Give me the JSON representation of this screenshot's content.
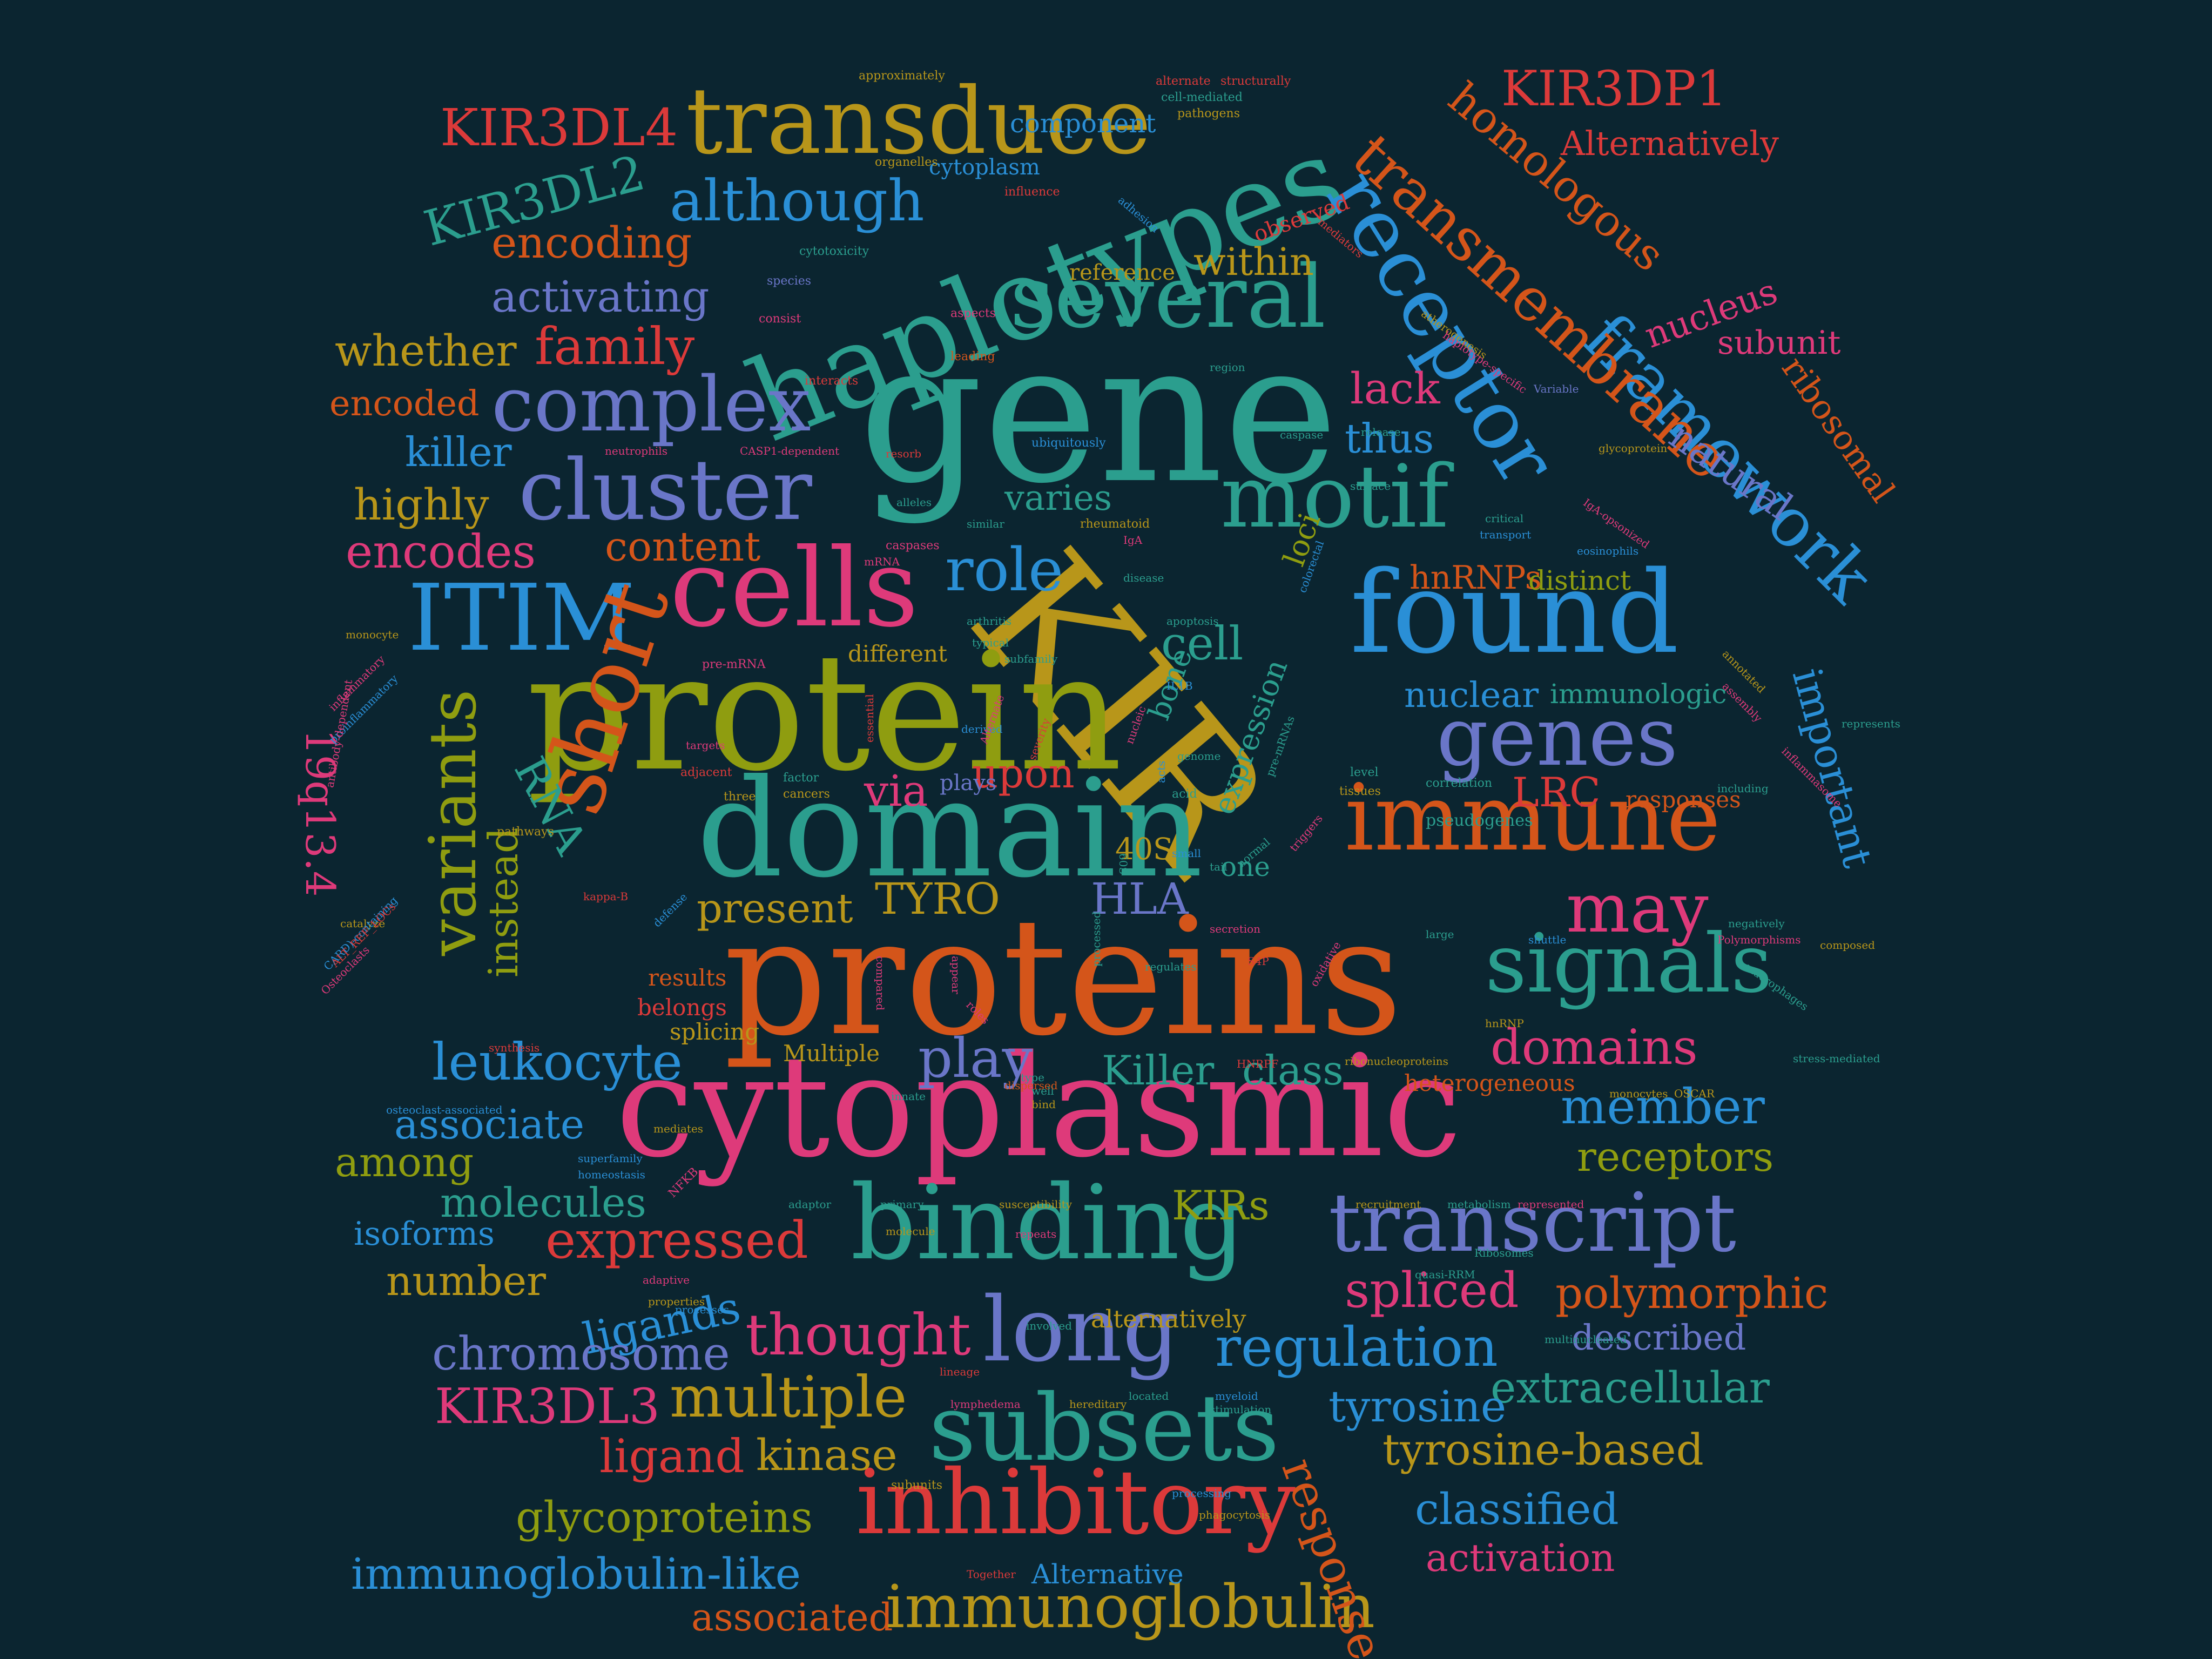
{
  "background": "#0b2530",
  "palette": {
    "teal": "#2b9e8e",
    "olive": "#8f9d10",
    "orange": "#d4551a",
    "pink": "#de3a7a",
    "blue": "#2a8fd6",
    "slate": "#6a76c8",
    "gold": "#b8961a",
    "red": "#dc3a3a"
  },
  "words": [
    {
      "text": "gene",
      "color": "#2b9e8e"
    },
    {
      "text": "KIR",
      "color": "#b8961a"
    },
    {
      "text": "proteins",
      "color": "#d4551a"
    },
    {
      "text": "cytoplasmic",
      "color": "#de3a7a"
    },
    {
      "text": "protein",
      "color": "#8f9d10"
    },
    {
      "text": "domain",
      "color": "#2b9e8e"
    },
    {
      "text": "haplotypes",
      "color": "#2b9e8e"
    },
    {
      "text": "binding",
      "color": "#2b9e8e"
    },
    {
      "text": "found",
      "color": "#2a8fd6"
    },
    {
      "text": "immune",
      "color": "#d4551a"
    },
    {
      "text": "cells",
      "color": "#de3a7a"
    },
    {
      "text": "receptor",
      "color": "#2a8fd6"
    },
    {
      "text": "transduce",
      "color": "#b8961a"
    },
    {
      "text": "several",
      "color": "#2b9e8e"
    },
    {
      "text": "motif",
      "color": "#2b9e8e"
    },
    {
      "text": "transcript",
      "color": "#6a76c8"
    },
    {
      "text": "inhibitory",
      "color": "#dc3a3a"
    },
    {
      "text": "subsets",
      "color": "#2b9e8e"
    },
    {
      "text": "long",
      "color": "#6a76c8"
    },
    {
      "text": "ITIM",
      "color": "#2a8fd6"
    },
    {
      "text": "cluster",
      "color": "#6a76c8"
    },
    {
      "text": "complex",
      "color": "#6a76c8"
    },
    {
      "text": "short",
      "color": "#d4551a"
    },
    {
      "text": "variants",
      "color": "#8f9d10"
    },
    {
      "text": "genes",
      "color": "#6a76c8"
    },
    {
      "text": "signals",
      "color": "#2b9e8e"
    },
    {
      "text": "framework",
      "color": "#2a8fd6"
    },
    {
      "text": "transmembrane",
      "color": "#d4551a"
    },
    {
      "text": "homologous",
      "color": "#d4551a"
    },
    {
      "text": "KIR3DP1",
      "color": "#dc3a3a"
    },
    {
      "text": "KIR3DL4",
      "color": "#dc3a3a"
    },
    {
      "text": "KIR3DL2",
      "color": "#2b9e8e"
    },
    {
      "text": "KIR3DL3",
      "color": "#de3a7a"
    },
    {
      "text": "although",
      "color": "#2a8fd6"
    },
    {
      "text": "encoding",
      "color": "#d4551a"
    },
    {
      "text": "activating",
      "color": "#6a76c8"
    },
    {
      "text": "whether",
      "color": "#b8961a"
    },
    {
      "text": "family",
      "color": "#dc3a3a"
    },
    {
      "text": "encoded",
      "color": "#d4551a"
    },
    {
      "text": "killer",
      "color": "#2a8fd6"
    },
    {
      "text": "highly",
      "color": "#b8961a"
    },
    {
      "text": "encodes",
      "color": "#de3a7a"
    },
    {
      "text": "content",
      "color": "#d4551a"
    },
    {
      "text": "role",
      "color": "#2a8fd6"
    },
    {
      "text": "within",
      "color": "#b8961a"
    },
    {
      "text": "lack",
      "color": "#de3a7a"
    },
    {
      "text": "thus",
      "color": "#2a8fd6"
    },
    {
      "text": "varies",
      "color": "#2b9e8e"
    },
    {
      "text": "natural",
      "color": "#6a76c8"
    },
    {
      "text": "nucleus",
      "color": "#de3a7a"
    },
    {
      "text": "subunit",
      "color": "#de3a7a"
    },
    {
      "text": "ribosomal",
      "color": "#d4551a"
    },
    {
      "text": "important",
      "color": "#2a8fd6"
    },
    {
      "text": "Alternatively",
      "color": "#dc3a3a"
    },
    {
      "text": "hnRNPs",
      "color": "#d4551a"
    },
    {
      "text": "distinct",
      "color": "#8f9d10"
    },
    {
      "text": "loci",
      "color": "#8f9d10"
    },
    {
      "text": "cell",
      "color": "#2b9e8e"
    },
    {
      "text": "nuclear",
      "color": "#2a8fd6"
    },
    {
      "text": "immunologic",
      "color": "#2b9e8e"
    },
    {
      "text": "LRC",
      "color": "#dc3a3a"
    },
    {
      "text": "may",
      "color": "#de3a7a"
    },
    {
      "text": "upon",
      "color": "#dc3a3a"
    },
    {
      "text": "via",
      "color": "#de3a7a"
    },
    {
      "text": "RNA",
      "color": "#2b9e8e"
    },
    {
      "text": "19q13.4",
      "color": "#de3a7a"
    },
    {
      "text": "instead",
      "color": "#8f9d10"
    },
    {
      "text": "present",
      "color": "#b8961a"
    },
    {
      "text": "TYRO",
      "color": "#b8961a"
    },
    {
      "text": "HLA",
      "color": "#6a76c8"
    },
    {
      "text": "40S",
      "color": "#b8961a"
    },
    {
      "text": "leukocyte",
      "color": "#2a8fd6"
    },
    {
      "text": "play",
      "color": "#6a76c8"
    },
    {
      "text": "Killer",
      "color": "#2b9e8e"
    },
    {
      "text": "class",
      "color": "#2b9e8e"
    },
    {
      "text": "domains",
      "color": "#de3a7a"
    },
    {
      "text": "member",
      "color": "#2a8fd6"
    },
    {
      "text": "receptors",
      "color": "#8f9d10"
    },
    {
      "text": "associate",
      "color": "#2a8fd6"
    },
    {
      "text": "among",
      "color": "#8f9d10"
    },
    {
      "text": "molecules",
      "color": "#2b9e8e"
    },
    {
      "text": "expressed",
      "color": "#dc3a3a"
    },
    {
      "text": "isoforms",
      "color": "#2a8fd6"
    },
    {
      "text": "number",
      "color": "#b8961a"
    },
    {
      "text": "ligands",
      "color": "#2a8fd6"
    },
    {
      "text": "thought",
      "color": "#de3a7a"
    },
    {
      "text": "chromosome",
      "color": "#6a76c8"
    },
    {
      "text": "multiple",
      "color": "#b8961a"
    },
    {
      "text": "ligand",
      "color": "#dc3a3a"
    },
    {
      "text": "kinase",
      "color": "#b8961a"
    },
    {
      "text": "glycoproteins",
      "color": "#8f9d10"
    },
    {
      "text": "immunoglobulin-like",
      "color": "#2a8fd6"
    },
    {
      "text": "associated",
      "color": "#d4551a"
    },
    {
      "text": "immunoglobulin",
      "color": "#b8961a"
    },
    {
      "text": "Alternative",
      "color": "#2a8fd6"
    },
    {
      "text": "KIRs",
      "color": "#8f9d10"
    },
    {
      "text": "spliced",
      "color": "#de3a7a"
    },
    {
      "text": "polymorphic",
      "color": "#d4551a"
    },
    {
      "text": "described",
      "color": "#6a76c8"
    },
    {
      "text": "regulation",
      "color": "#2a8fd6"
    },
    {
      "text": "extracellular",
      "color": "#2b9e8e"
    },
    {
      "text": "tyrosine",
      "color": "#2a8fd6"
    },
    {
      "text": "tyrosine-based",
      "color": "#b8961a"
    },
    {
      "text": "classified",
      "color": "#2a8fd6"
    },
    {
      "text": "activation",
      "color": "#de3a7a"
    },
    {
      "text": "response",
      "color": "#d4551a"
    },
    {
      "text": "alternatively",
      "color": "#b8961a"
    },
    {
      "text": "component",
      "color": "#2a8fd6"
    },
    {
      "text": "cytoplasm",
      "color": "#2a8fd6"
    },
    {
      "text": "observed",
      "color": "#dc3a3a"
    },
    {
      "text": "reference",
      "color": "#b8961a"
    },
    {
      "text": "expression",
      "color": "#2b9e8e"
    },
    {
      "text": "bone",
      "color": "#2b9e8e"
    },
    {
      "text": "different",
      "color": "#b8961a"
    },
    {
      "text": "plays",
      "color": "#6a76c8"
    },
    {
      "text": "one",
      "color": "#2b9e8e"
    },
    {
      "text": "results",
      "color": "#d4551a"
    },
    {
      "text": "belongs",
      "color": "#dc3a3a"
    },
    {
      "text": "splicing",
      "color": "#b8961a"
    },
    {
      "text": "Multiple",
      "color": "#b8961a"
    },
    {
      "text": "heterogeneous",
      "color": "#d4551a"
    },
    {
      "text": "responses",
      "color": "#d4551a"
    },
    {
      "text": "pseudogenes",
      "color": "#2b9e8e"
    },
    {
      "text": "approximately",
      "color": "#b8961a"
    },
    {
      "text": "alternate",
      "color": "#dc3a3a"
    },
    {
      "text": "structurally",
      "color": "#dc3a3a"
    },
    {
      "text": "cell-mediated",
      "color": "#2b9e8e"
    },
    {
      "text": "pathogens",
      "color": "#b8961a"
    },
    {
      "text": "organelles",
      "color": "#b8961a"
    },
    {
      "text": "influence",
      "color": "#dc3a3a"
    },
    {
      "text": "adhesion",
      "color": "#2a8fd6"
    },
    {
      "text": "mediators",
      "color": "#dc3a3a"
    },
    {
      "text": "cytotoxicity",
      "color": "#2b9e8e"
    },
    {
      "text": "species",
      "color": "#6a76c8"
    },
    {
      "text": "aspects",
      "color": "#de3a7a"
    },
    {
      "text": "consist",
      "color": "#de3a7a"
    },
    {
      "text": "leading",
      "color": "#d4551a"
    },
    {
      "text": "interacts",
      "color": "#dc3a3a"
    },
    {
      "text": "atherogenesis",
      "color": "#b8961a"
    },
    {
      "text": "haplotype-specific",
      "color": "#de3a7a"
    },
    {
      "text": "region",
      "color": "#2b9e8e"
    },
    {
      "text": "Variable",
      "color": "#6a76c8"
    },
    {
      "text": "neutrophils",
      "color": "#de3a7a"
    },
    {
      "text": "CASP1-dependent",
      "color": "#de3a7a"
    },
    {
      "text": "resorb",
      "color": "#dc3a3a"
    },
    {
      "text": "ubiquitously",
      "color": "#2a8fd6"
    },
    {
      "text": "release",
      "color": "#2b9e8e"
    },
    {
      "text": "caspase",
      "color": "#2b9e8e"
    },
    {
      "text": "glycoprotein",
      "color": "#b8961a"
    },
    {
      "text": "IgA-opsonized",
      "color": "#de3a7a"
    },
    {
      "text": "surface",
      "color": "#2b9e8e"
    },
    {
      "text": "critical",
      "color": "#2b9e8e"
    },
    {
      "text": "transport",
      "color": "#2a8fd6"
    },
    {
      "text": "alleles",
      "color": "#2b9e8e"
    },
    {
      "text": "similar",
      "color": "#2b9e8e"
    },
    {
      "text": "IgA",
      "color": "#de3a7a"
    },
    {
      "text": "rheumatoid",
      "color": "#b8961a"
    },
    {
      "text": "caspases",
      "color": "#de3a7a"
    },
    {
      "text": "mRNA",
      "color": "#de3a7a"
    },
    {
      "text": "disease",
      "color": "#2b9e8e"
    },
    {
      "text": "colorectal",
      "color": "#2a8fd6"
    },
    {
      "text": "eosinophils",
      "color": "#2a8fd6"
    },
    {
      "text": "arthritis",
      "color": "#2b9e8e"
    },
    {
      "text": "apoptosis",
      "color": "#2b9e8e"
    },
    {
      "text": "typical",
      "color": "#2b9e8e"
    },
    {
      "text": "subfamily",
      "color": "#2b9e8e"
    },
    {
      "text": "monocyte",
      "color": "#b8961a"
    },
    {
      "text": "pre-mRNA",
      "color": "#de3a7a"
    },
    {
      "text": "IL1B",
      "color": "#2a8fd6"
    },
    {
      "text": "inflammatory",
      "color": "#de3a7a"
    },
    {
      "text": "proinflammatory",
      "color": "#2a8fd6"
    },
    {
      "text": "annotated",
      "color": "#b8961a"
    },
    {
      "text": "assembly",
      "color": "#de3a7a"
    },
    {
      "text": "represents",
      "color": "#2b9e8e"
    },
    {
      "text": "derived",
      "color": "#2a8fd6"
    },
    {
      "text": "targets",
      "color": "#de3a7a"
    },
    {
      "text": "adjacent",
      "color": "#dc3a3a"
    },
    {
      "text": "factor",
      "color": "#2b9e8e"
    },
    {
      "text": "cancers",
      "color": "#b8961a"
    },
    {
      "text": "acid",
      "color": "#2b9e8e"
    },
    {
      "text": "level",
      "color": "#2b9e8e"
    },
    {
      "text": "tissues",
      "color": "#b8961a"
    },
    {
      "text": "correlation",
      "color": "#2b9e8e"
    },
    {
      "text": "three",
      "color": "#b8961a"
    },
    {
      "text": "pathways",
      "color": "#b8961a"
    },
    {
      "text": "genome",
      "color": "#2b9e8e"
    },
    {
      "text": "including",
      "color": "#2b9e8e"
    },
    {
      "text": "inflammasome",
      "color": "#de3a7a"
    },
    {
      "text": "antibody-dependent",
      "color": "#de3a7a"
    },
    {
      "text": "catalyze",
      "color": "#b8961a"
    },
    {
      "text": "kappa-B",
      "color": "#dc3a3a"
    },
    {
      "text": "CARD)-containing",
      "color": "#2a8fd6"
    },
    {
      "text": "ALT_REF_LOCs",
      "color": "#dc3a3a"
    },
    {
      "text": "Osteoclasts",
      "color": "#de3a7a"
    },
    {
      "text": "synthesis",
      "color": "#dc3a3a"
    },
    {
      "text": "acts",
      "color": "#2a8fd6"
    },
    {
      "text": "small",
      "color": "#2a8fd6"
    },
    {
      "text": "tail",
      "color": "#2b9e8e"
    },
    {
      "text": "normal",
      "color": "#2b9e8e"
    },
    {
      "text": "triggers",
      "color": "#de3a7a"
    },
    {
      "text": "large",
      "color": "#2b9e8e"
    },
    {
      "text": "shuttle",
      "color": "#2a8fd6"
    },
    {
      "text": "negatively",
      "color": "#2b9e8e"
    },
    {
      "text": "Polymorphisms",
      "color": "#de3a7a"
    },
    {
      "text": "macrophages",
      "color": "#2b9e8e"
    },
    {
      "text": "composed",
      "color": "#b8961a"
    },
    {
      "text": "secretion",
      "color": "#de3a7a"
    },
    {
      "text": "S4P",
      "color": "#dc3a3a"
    },
    {
      "text": "oxidative",
      "color": "#de3a7a"
    },
    {
      "text": "regulates",
      "color": "#2b9e8e"
    },
    {
      "text": "processed",
      "color": "#2b9e8e"
    },
    {
      "text": "hnRNP",
      "color": "#b8961a"
    },
    {
      "text": "stress-mediated",
      "color": "#2b9e8e"
    },
    {
      "text": "HNRPF",
      "color": "#dc3a3a"
    },
    {
      "text": "ribonucleoproteins",
      "color": "#b8961a"
    },
    {
      "text": "monocytes",
      "color": "#b8961a"
    },
    {
      "text": "OSCAR",
      "color": "#b8961a"
    },
    {
      "text": "type",
      "color": "#2b9e8e"
    },
    {
      "text": "well",
      "color": "#2b9e8e"
    },
    {
      "text": "bind",
      "color": "#b8961a"
    },
    {
      "text": "dispersed",
      "color": "#d4551a"
    },
    {
      "text": "innate",
      "color": "#2b9e8e"
    },
    {
      "text": "osteoclast-associated",
      "color": "#2a8fd6"
    },
    {
      "text": "mediates",
      "color": "#b8961a"
    },
    {
      "text": "superfamily",
      "color": "#2a8fd6"
    },
    {
      "text": "homeostasis",
      "color": "#2a8fd6"
    },
    {
      "text": "NFKB",
      "color": "#de3a7a"
    },
    {
      "text": "adaptor",
      "color": "#2b9e8e"
    },
    {
      "text": "primary",
      "color": "#2b9e8e"
    },
    {
      "text": "susceptibility",
      "color": "#b8961a"
    },
    {
      "text": "molecule",
      "color": "#b8961a"
    },
    {
      "text": "repeats",
      "color": "#de3a7a"
    },
    {
      "text": "recruitment",
      "color": "#b8961a"
    },
    {
      "text": "metabolism",
      "color": "#2b9e8e"
    },
    {
      "text": "represented",
      "color": "#de3a7a"
    },
    {
      "text": "Ribosomes",
      "color": "#2b9e8e"
    },
    {
      "text": "quasi-RRM",
      "color": "#2b9e8e"
    },
    {
      "text": "adaptive",
      "color": "#de3a7a"
    },
    {
      "text": "properties",
      "color": "#b8961a"
    },
    {
      "text": "processes",
      "color": "#2a8fd6"
    },
    {
      "text": "multinucleated",
      "color": "#2b9e8e"
    },
    {
      "text": "involved",
      "color": "#2b9e8e"
    },
    {
      "text": "lineage",
      "color": "#dc3a3a"
    },
    {
      "text": "stimulation",
      "color": "#2b9e8e"
    },
    {
      "text": "myeloid",
      "color": "#2a8fd6"
    },
    {
      "text": "lymphedema",
      "color": "#de3a7a"
    },
    {
      "text": "hereditary",
      "color": "#b8961a"
    },
    {
      "text": "located",
      "color": "#2b9e8e"
    },
    {
      "text": "subunits",
      "color": "#b8961a"
    },
    {
      "text": "processing",
      "color": "#2a8fd6"
    },
    {
      "text": "phagocytosis",
      "color": "#b8961a"
    },
    {
      "text": "Together",
      "color": "#dc3a3a"
    },
    {
      "text": "essential",
      "color": "#dc3a3a"
    },
    {
      "text": "Alternate",
      "color": "#de3a7a"
    },
    {
      "text": "severity",
      "color": "#dc3a3a"
    },
    {
      "text": "nucleic",
      "color": "#de3a7a"
    },
    {
      "text": "pre-mRNAs",
      "color": "#2b9e8e"
    },
    {
      "text": "defense",
      "color": "#2a8fd6"
    },
    {
      "text": "compared",
      "color": "#de3a7a"
    },
    {
      "text": "appear",
      "color": "#de3a7a"
    },
    {
      "text": "roles",
      "color": "#de3a7a"
    },
    {
      "text": "60S",
      "color": "#2b9e8e"
    }
  ]
}
